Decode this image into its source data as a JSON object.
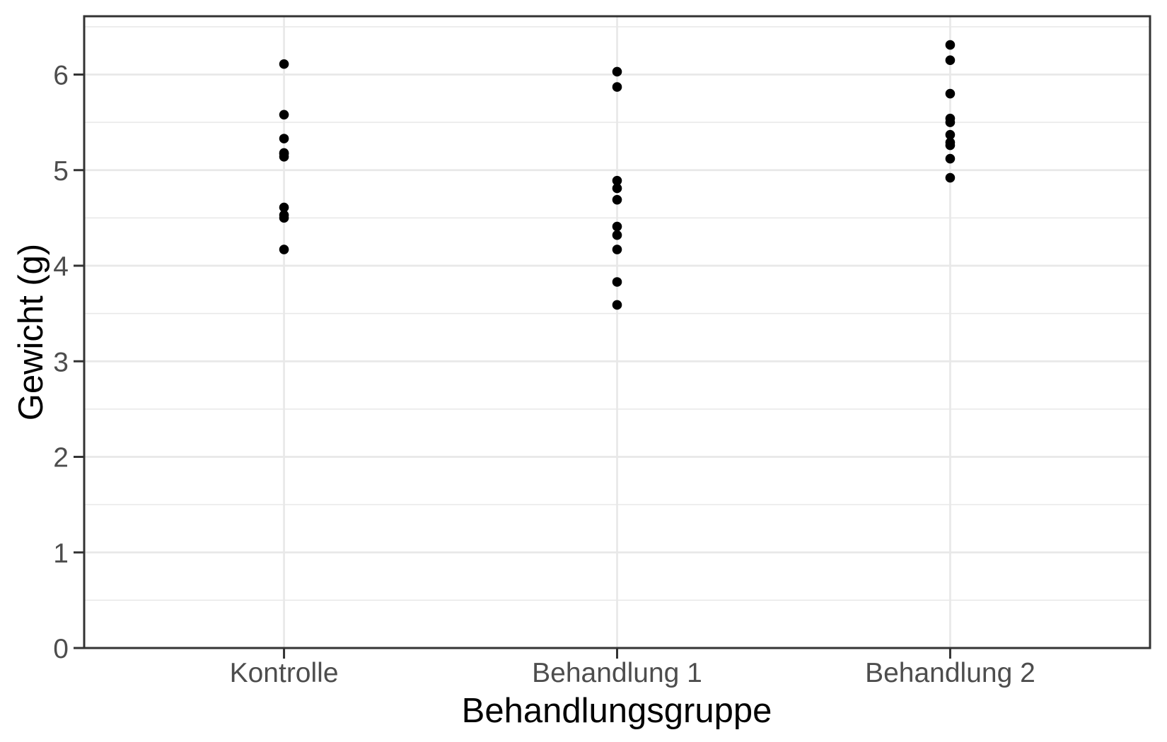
{
  "chart_data": {
    "type": "scatter",
    "title": "",
    "xlabel": "Behandlungsgruppe",
    "ylabel": "Gewicht (g)",
    "categories": [
      "Kontrolle",
      "Behandlung 1",
      "Behandlung 2"
    ],
    "series": [
      {
        "name": "Kontrolle",
        "values": [
          4.17,
          5.58,
          5.18,
          6.11,
          4.5,
          4.61,
          5.17,
          4.53,
          5.33,
          5.14
        ]
      },
      {
        "name": "Behandlung 1",
        "values": [
          4.81,
          4.17,
          4.41,
          3.59,
          5.87,
          3.83,
          6.03,
          4.89,
          4.32,
          4.69
        ]
      },
      {
        "name": "Behandlung 2",
        "values": [
          6.31,
          5.12,
          5.54,
          5.5,
          5.37,
          5.29,
          4.92,
          6.15,
          5.8,
          5.26
        ]
      }
    ],
    "ylim": [
      0,
      6.61
    ],
    "y_ticks": [
      0,
      1,
      2,
      3,
      4,
      5,
      6
    ],
    "y_minor_ticks": [
      0.5,
      1.5,
      2.5,
      3.5,
      4.5,
      5.5,
      6.5
    ],
    "grid": true,
    "legend": "none",
    "point_color": "#000000",
    "colors": {
      "background": "#ffffff",
      "panel_background": "#ffffff",
      "grid": "#e8e8e8",
      "axis": "#333333",
      "tick_label": "#4d4d4d",
      "axis_title": "#000000"
    }
  }
}
